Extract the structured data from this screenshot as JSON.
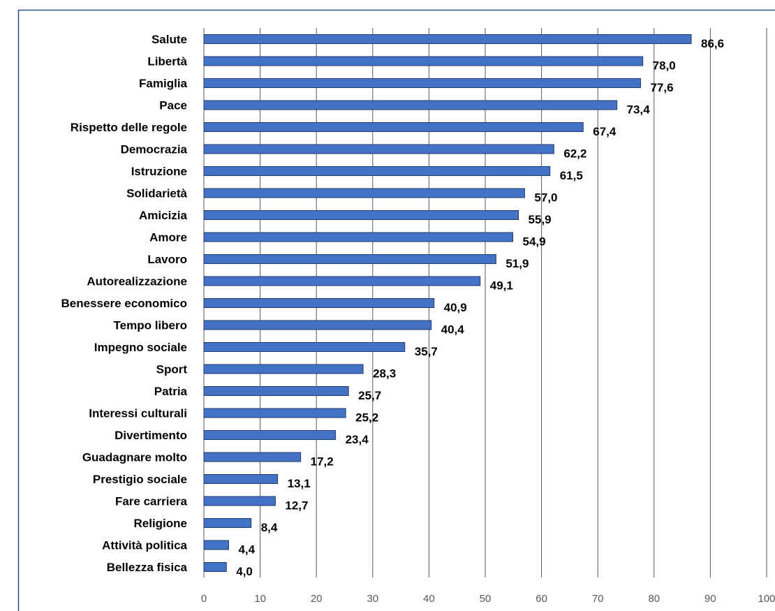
{
  "chart_data": {
    "type": "bar",
    "orientation": "horizontal",
    "categories": [
      "Salute",
      "Libertà",
      "Famiglia",
      "Pace",
      "Rispetto delle regole",
      "Democrazia",
      "Istruzione",
      "Solidarietà",
      "Amicizia",
      "Amore",
      "Lavoro",
      "Autorealizzazione",
      "Benessere economico",
      "Tempo libero",
      "Impegno sociale",
      "Sport",
      "Patria",
      "Interessi culturali",
      "Divertimento",
      "Guadagnare molto",
      "Prestigio sociale",
      "Fare carriera",
      "Religione",
      "Attività politica",
      "Bellezza fisica"
    ],
    "values": [
      86.6,
      78.0,
      77.6,
      73.4,
      67.4,
      62.2,
      61.5,
      57.0,
      55.9,
      54.9,
      51.9,
      49.1,
      40.9,
      40.4,
      35.7,
      28.3,
      25.7,
      25.2,
      23.4,
      17.2,
      13.1,
      12.7,
      8.4,
      4.4,
      4.0
    ],
    "value_labels": [
      "86,6",
      "78,0",
      "77,6",
      "73,4",
      "67,4",
      "62,2",
      "61,5",
      "57,0",
      "55,9",
      "54,9",
      "51,9",
      "49,1",
      "40,9",
      "40,4",
      "35,7",
      "28,3",
      "25,7",
      "25,2",
      "23,4",
      "17,2",
      "13,1",
      "12,7",
      "8,4",
      "4,4",
      "4,0"
    ],
    "x_ticks": [
      "0",
      "10",
      "20",
      "30",
      "40",
      "50",
      "60",
      "70",
      "80",
      "90",
      "100"
    ],
    "xlim": [
      0,
      100
    ],
    "grid": true,
    "legend": false,
    "title": "",
    "xlabel": "",
    "ylabel": "",
    "colors": {
      "bar_fill": "#4472c4",
      "bar_stroke": "#1f3a73",
      "grid": "#595959",
      "frame": "#2f4f8a"
    }
  }
}
